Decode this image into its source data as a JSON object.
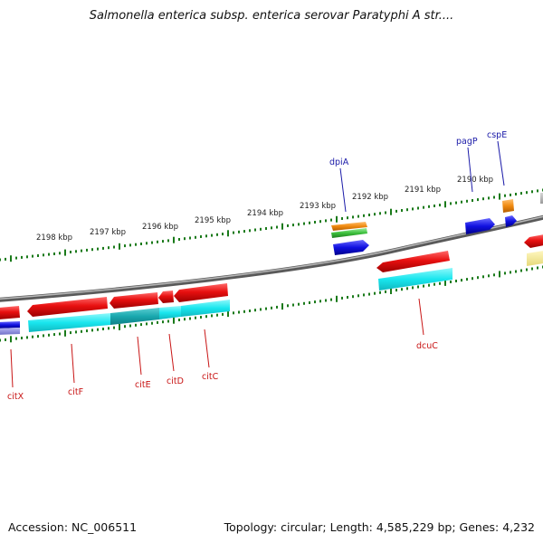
{
  "title": "Salmonella enterica subsp. enterica serovar Paratyphi A str....",
  "footer": {
    "accession": "Accession: NC_006511",
    "topology": "Topology: circular; Length: 4,585,229 bp; Genes: 4,232"
  },
  "scale_labels": [
    "2198 kbp",
    "2197 kbp",
    "2196 kbp",
    "2195 kbp",
    "2194 kbp",
    "2193 kbp",
    "2192 kbp",
    "2191 kbp",
    "2190 kbp"
  ],
  "genes": {
    "forward": [
      "dpiA",
      "pagP",
      "cspE"
    ],
    "reverse": [
      "citX",
      "citF",
      "citE",
      "citD",
      "citC",
      "dcuC"
    ]
  },
  "colors": {
    "backbone": "#8a8a8a",
    "tick": "#1a7a1a",
    "forward_label": "#1a1aa8",
    "reverse_label": "#c81414",
    "gene_red": "#e81010",
    "gene_cyan": "#19e6ee",
    "gene_blue": "#1010e0",
    "gene_orange": "#f08a10",
    "gene_green": "#3cbf3c"
  }
}
